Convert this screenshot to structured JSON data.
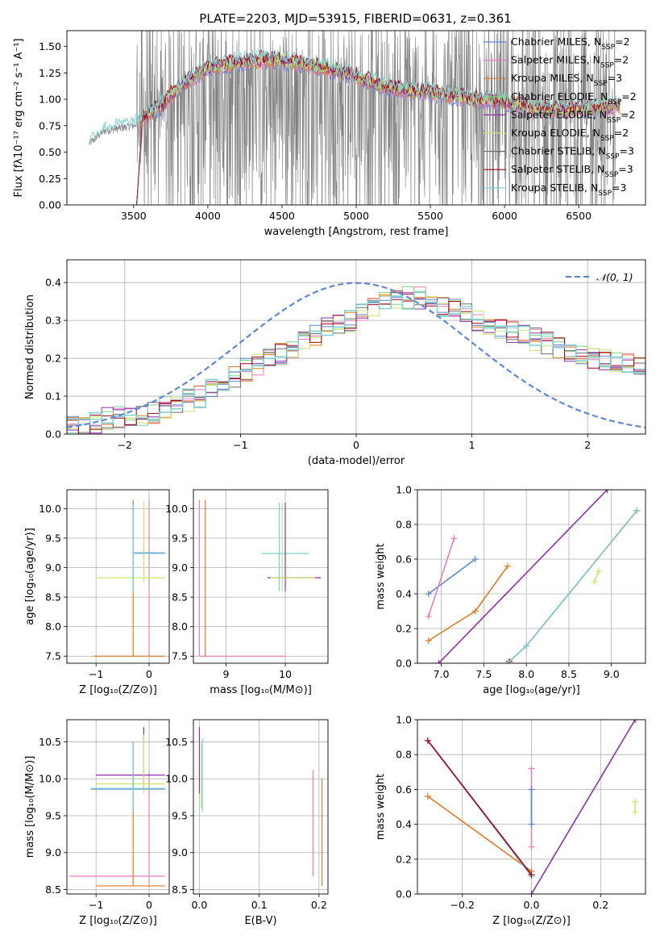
{
  "figure_title": "PLATE=2203, MJD=53915, FIBERID=0631, z=0.361",
  "legend_entries": [
    {
      "label": "Chabrier MILES, N",
      "sub": "SSP",
      "tail": "=2",
      "color": "#5f87d8"
    },
    {
      "label": "Salpeter MILES, N",
      "sub": "SSP",
      "tail": "=2",
      "color": "#e77fbf"
    },
    {
      "label": "Kroupa MILES, N",
      "sub": "SSP",
      "tail": "=3",
      "color": "#e07b27"
    },
    {
      "label": "Chabrier ELODIE, N",
      "sub": "SSP",
      "tail": "=2",
      "color": "#7fd18b"
    },
    {
      "label": "Salpeter ELODIE, N",
      "sub": "SSP",
      "tail": "=2",
      "color": "#8e2fab"
    },
    {
      "label": "Kroupa ELODIE, N",
      "sub": "SSP",
      "tail": "=2",
      "color": "#c6e96a"
    },
    {
      "label": "Chabrier STELIB, N",
      "sub": "SSP",
      "tail": "=3",
      "color": "#6d6d6d"
    },
    {
      "label": "Salpeter STELIB, N",
      "sub": "SSP",
      "tail": "=3",
      "color": "#a3001b"
    },
    {
      "label": "Kroupa STELIB, N",
      "sub": "SSP",
      "tail": "=3",
      "color": "#7fd1d1"
    }
  ],
  "chart_data": [
    {
      "id": "spectrum",
      "type": "line",
      "xlabel": "wavelength [Angstrom, rest frame]",
      "ylabel": "Flux [fλ10⁻¹⁷ erg cm⁻² s⁻¹ A⁻¹]",
      "xlim": [
        3050,
        6950
      ],
      "ylim": [
        0,
        1.65
      ],
      "xticks": [
        3500,
        4000,
        4500,
        5000,
        5500,
        6000,
        6500
      ],
      "yticks": [
        0.0,
        0.25,
        0.5,
        0.75,
        1.0,
        1.25,
        1.5
      ],
      "data_range": [
        3200,
        6750
      ],
      "model_range": [
        3520,
        6780
      ],
      "continuum": [
        [
          3200,
          0.58
        ],
        [
          3300,
          0.7
        ],
        [
          3500,
          0.75
        ],
        [
          3600,
          0.86
        ],
        [
          3700,
          0.95
        ],
        [
          3800,
          1.12
        ],
        [
          4000,
          1.3
        ],
        [
          4200,
          1.35
        ],
        [
          4400,
          1.38
        ],
        [
          4600,
          1.35
        ],
        [
          4800,
          1.3
        ],
        [
          5000,
          1.22
        ],
        [
          5200,
          1.12
        ],
        [
          5400,
          1.08
        ],
        [
          5600,
          1.05
        ],
        [
          5800,
          1.0
        ],
        [
          6000,
          0.98
        ],
        [
          6200,
          0.92
        ],
        [
          6400,
          0.9
        ],
        [
          6600,
          0.92
        ],
        [
          6750,
          0.93
        ]
      ]
    },
    {
      "id": "residuals",
      "type": "step",
      "xlabel": "(data-model)/error",
      "ylabel": "Normed distribution",
      "xlim": [
        -2.5,
        2.5
      ],
      "ylim": [
        0,
        0.46
      ],
      "xticks": [
        -2,
        -1,
        0,
        1,
        2
      ],
      "yticks": [
        0.0,
        0.1,
        0.2,
        0.3,
        0.4
      ],
      "gauss_label": "𝒩(0, 1)",
      "bin_start": -2.5,
      "bin_width": 0.1,
      "hist_mean": [
        0.025,
        0.025,
        0.03,
        0.04,
        0.045,
        0.05,
        0.05,
        0.055,
        0.07,
        0.08,
        0.09,
        0.1,
        0.115,
        0.13,
        0.15,
        0.17,
        0.185,
        0.2,
        0.21,
        0.22,
        0.24,
        0.26,
        0.28,
        0.29,
        0.3,
        0.32,
        0.33,
        0.345,
        0.35,
        0.36,
        0.36,
        0.35,
        0.34,
        0.33,
        0.32,
        0.3,
        0.29,
        0.28,
        0.27,
        0.26,
        0.25,
        0.24,
        0.23,
        0.22,
        0.21,
        0.2,
        0.195,
        0.19,
        0.19,
        0.185,
        0.18,
        0.17,
        0.165,
        0.15,
        0.14,
        0.13,
        0.12,
        0.11,
        0.1,
        0.09,
        0.08,
        0.08,
        0.075,
        0.07,
        0.065,
        0.06,
        0.06,
        0.055,
        0.05,
        0.05
      ]
    },
    {
      "id": "age_vs_Z",
      "type": "errorbar",
      "xlabel": "Z [log₁₀(Z/Z⊙)]",
      "ylabel": "age  [log₁₀(age/yr)]",
      "xlim": [
        -1.55,
        0.38
      ],
      "ylim": [
        7.38,
        10.32
      ],
      "xticks": [
        -1,
        0
      ],
      "yticks": [
        7.5,
        8.0,
        8.5,
        9.0,
        9.5,
        10.0
      ],
      "points": [
        {
          "x": 0.0,
          "xerr": [
            0,
            0
          ],
          "y": 9.25,
          "yerr": [
            9.25,
            9.25
          ],
          "color": "#e77fbf",
          "xmin": 0.0,
          "xmax": 0.0,
          "ymin": 7.5,
          "ymax": 10.15
        },
        {
          "x": -0.1,
          "xmin": -1.0,
          "xmax": 0.3,
          "y": 8.83,
          "ymin": 8.76,
          "ymax": 10.12,
          "color": "#c6e96a"
        },
        {
          "x": -0.3,
          "xmin": -1.05,
          "xmax": 0.3,
          "y": 7.5,
          "ymin": 7.5,
          "ymax": 10.15,
          "color": "#e07b27"
        },
        {
          "x": -0.3,
          "xmin": -0.3,
          "xmax": 0.3,
          "y": 9.25,
          "ymin": 8.6,
          "ymax": 10.1,
          "color": "#5f87d8"
        },
        {
          "x": -0.3,
          "xmin": -0.3,
          "xmax": 0.3,
          "y": 9.24,
          "ymin": 8.6,
          "ymax": 10.08,
          "color": "#7fd1d1"
        }
      ]
    },
    {
      "id": "age_vs_mass",
      "type": "errorbar",
      "xlabel": "mass [log₁₀(M/M⊙)]",
      "ylabel": "",
      "xlim": [
        8.45,
        10.72
      ],
      "ylim": [
        7.38,
        10.32
      ],
      "xticks": [
        9,
        10
      ],
      "yticks": [
        7.5,
        8.0,
        8.5,
        9.0,
        9.5,
        10.0
      ],
      "points": [
        {
          "x": 8.55,
          "xmin": 8.55,
          "xmax": 10.0,
          "y": 7.5,
          "ymin": 7.5,
          "ymax": 10.15,
          "color": "#e77fbf"
        },
        {
          "x": 8.65,
          "xmin": 8.65,
          "xmax": 8.65,
          "y": 7.5,
          "ymin": 7.5,
          "ymax": 10.15,
          "color": "#e07b27"
        },
        {
          "x": 9.9,
          "xmin": 9.6,
          "xmax": 10.4,
          "y": 9.24,
          "ymin": 8.6,
          "ymax": 10.1,
          "color": "#7fd1d1"
        },
        {
          "x": 10.0,
          "xmin": 9.7,
          "xmax": 10.6,
          "y": 8.83,
          "ymin": 8.6,
          "ymax": 10.1,
          "color": "#8e2fab"
        },
        {
          "x": 9.95,
          "xmin": 9.75,
          "xmax": 10.5,
          "y": 8.83,
          "ymin": 8.6,
          "ymax": 10.1,
          "color": "#c6e96a"
        }
      ]
    },
    {
      "id": "weight_vs_age",
      "type": "line",
      "xlabel": "age  [log₁₀(age/yr)]",
      "ylabel": "mass weight",
      "xlim": [
        6.72,
        9.4
      ],
      "ylim": [
        0,
        1.0
      ],
      "xticks": [
        7.0,
        7.5,
        8.0,
        8.5,
        9.0
      ],
      "yticks": [
        0.0,
        0.2,
        0.4,
        0.6,
        0.8,
        1.0
      ],
      "series": [
        {
          "color": "#5f87d8",
          "x": [
            6.85,
            7.4
          ],
          "y": [
            0.4,
            0.6
          ]
        },
        {
          "color": "#e77fbf",
          "x": [
            6.85,
            7.15
          ],
          "y": [
            0.27,
            0.72
          ]
        },
        {
          "color": "#e07b27",
          "x": [
            6.85,
            7.4,
            7.78
          ],
          "y": [
            0.13,
            0.3,
            0.56
          ]
        },
        {
          "color": "#8e2fab",
          "x": [
            6.97,
            8.95
          ],
          "y": [
            0.0,
            1.0
          ]
        },
        {
          "color": "#a3001b",
          "x": [
            7.8,
            8.0,
            9.3
          ],
          "y": [
            0.01,
            0.1,
            0.88
          ]
        },
        {
          "color": "#7fd1d1",
          "x": [
            7.78,
            8.0,
            9.3
          ],
          "y": [
            0.0,
            0.1,
            0.88
          ]
        },
        {
          "color": "#c6e96a",
          "x": [
            8.8,
            8.85
          ],
          "y": [
            0.47,
            0.53
          ]
        }
      ]
    },
    {
      "id": "mass_vs_Z",
      "type": "errorbar",
      "xlabel": "Z [log₁₀(Z/Z⊙)]",
      "ylabel": "mass [log₁₀(M/M⊙)]",
      "xlim": [
        -1.55,
        0.38
      ],
      "ylim": [
        8.44,
        10.8
      ],
      "xticks": [
        -1,
        0
      ],
      "yticks": [
        8.5,
        9.0,
        9.5,
        10.0,
        10.5
      ],
      "points": [
        {
          "x": -1.5,
          "xmin": -1.5,
          "xmax": 0.3,
          "y": 8.68,
          "ymin": 8.68,
          "ymax": 8.68,
          "color": "#e77fbf"
        },
        {
          "x": 0.0,
          "xmin": 0.0,
          "xmax": 0.0,
          "y": 8.68,
          "ymin": 8.55,
          "ymax": 10.1,
          "color": "#e77fbf"
        },
        {
          "x": -0.3,
          "xmin": -1.0,
          "xmax": 0.3,
          "y": 8.55,
          "ymin": 8.55,
          "ymax": 10.5,
          "color": "#e07b27"
        },
        {
          "x": -0.1,
          "xmin": -1.0,
          "xmax": 0.3,
          "y": 10.05,
          "ymin": 9.9,
          "ymax": 10.7,
          "color": "#8e2fab"
        },
        {
          "x": -0.1,
          "xmin": -1.0,
          "xmax": 0.3,
          "y": 9.93,
          "ymin": 9.8,
          "ymax": 10.6,
          "color": "#c6e96a"
        },
        {
          "x": -0.3,
          "xmin": -1.1,
          "xmax": 0.3,
          "y": 9.86,
          "ymin": 9.55,
          "ymax": 10.5,
          "color": "#5f87d8"
        },
        {
          "x": -0.3,
          "xmin": -1.1,
          "xmax": 0.3,
          "y": 9.87,
          "ymin": 9.55,
          "ymax": 10.5,
          "color": "#7fd1d1"
        }
      ]
    },
    {
      "id": "mass_vs_ebv",
      "type": "errorbar",
      "xlabel": "E(B-V)",
      "ylabel": "",
      "xlim": [
        -0.01,
        0.215
      ],
      "ylim": [
        8.44,
        10.8
      ],
      "xticks": [
        0.0,
        0.1,
        0.2
      ],
      "yticks": [
        8.5,
        9.0,
        9.5,
        10.0,
        10.5
      ],
      "points": [
        {
          "x": 0.0,
          "xmin": 0.0,
          "xmax": 0.0,
          "y": 10.1,
          "ymin": 9.8,
          "ymax": 10.7,
          "color": "#8e2fab"
        },
        {
          "x": 0.005,
          "xmin": 0.005,
          "xmax": 0.005,
          "y": 10.0,
          "ymin": 9.55,
          "ymax": 10.55,
          "color": "#7fd1d1"
        },
        {
          "x": 0.003,
          "xmin": 0.003,
          "xmax": 0.003,
          "y": 10.0,
          "ymin": 9.6,
          "ymax": 10.5,
          "color": "#c6e96a"
        },
        {
          "x": 0.19,
          "xmin": 0.19,
          "xmax": 0.19,
          "y": 8.68,
          "ymin": 8.68,
          "ymax": 10.12,
          "color": "#e77fbf"
        },
        {
          "x": 0.205,
          "xmin": 0.205,
          "xmax": 0.205,
          "y": 8.55,
          "ymin": 8.55,
          "ymax": 10.0,
          "color": "#e07b27"
        }
      ]
    },
    {
      "id": "weight_vs_Z",
      "type": "line",
      "xlabel": "Z [log₁₀(Z/Z⊙)]",
      "ylabel": "mass weight",
      "xlim": [
        -0.33,
        0.33
      ],
      "ylim": [
        0,
        1.0
      ],
      "xticks": [
        -0.2,
        0.0,
        0.2
      ],
      "yticks": [
        0.0,
        0.2,
        0.4,
        0.6,
        0.8,
        1.0
      ],
      "series": [
        {
          "color": "#e07b27",
          "x": [
            -0.3,
            0.0
          ],
          "y": [
            0.56,
            0.13
          ]
        },
        {
          "color": "#7fd1d1",
          "x": [
            -0.3,
            0.0
          ],
          "y": [
            0.88,
            0.1
          ]
        },
        {
          "color": "#a3001b",
          "x": [
            -0.3,
            0.0
          ],
          "y": [
            0.88,
            0.11
          ]
        },
        {
          "color": "#8e2fab",
          "x": [
            0.0,
            0.3
          ],
          "y": [
            0.0,
            1.0
          ]
        },
        {
          "color": "#e77fbf",
          "x": [
            0.0,
            0.0
          ],
          "y": [
            0.27,
            0.72
          ]
        },
        {
          "color": "#5f87d8",
          "x": [
            0.0,
            0.0
          ],
          "y": [
            0.4,
            0.6
          ]
        },
        {
          "color": "#c6e96a",
          "x": [
            0.3,
            0.3
          ],
          "y": [
            0.47,
            0.53
          ]
        }
      ]
    }
  ]
}
